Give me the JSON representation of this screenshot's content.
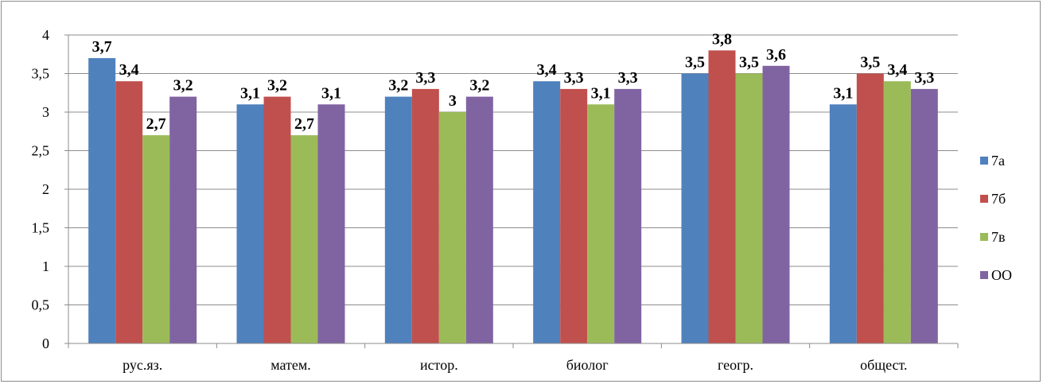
{
  "chart_data": {
    "type": "bar",
    "categories": [
      "рус.яз.",
      "матем.",
      "истор.",
      "биолог",
      "геогр.",
      "общест."
    ],
    "series": [
      {
        "name": "7а",
        "values": [
          3.7,
          3.1,
          3.2,
          3.4,
          3.5,
          3.1
        ],
        "labels": [
          "3,7",
          "3,1",
          "3,2",
          "3,4",
          "3,5",
          "3,1"
        ],
        "color": "#4f81bd"
      },
      {
        "name": "7б",
        "values": [
          3.4,
          3.2,
          3.3,
          3.3,
          3.8,
          3.5
        ],
        "labels": [
          "3,4",
          "3,2",
          "3,3",
          "3,3",
          "3,8",
          "3,5"
        ],
        "color": "#c0504d"
      },
      {
        "name": "7в",
        "values": [
          2.7,
          2.7,
          3.0,
          3.1,
          3.5,
          3.4
        ],
        "labels": [
          "2,7",
          "2,7",
          "3",
          "3,1",
          "3,5",
          "3,4"
        ],
        "color": "#9bbb59"
      },
      {
        "name": "ОО",
        "values": [
          3.2,
          3.1,
          3.2,
          3.3,
          3.6,
          3.3
        ],
        "labels": [
          "3,2",
          "3,1",
          "3,2",
          "3,3",
          "3,6",
          "3,3"
        ],
        "color": "#8064a2"
      }
    ],
    "ylim": [
      0,
      4
    ],
    "yticks": [
      0,
      0.5,
      1,
      1.5,
      2,
      2.5,
      3,
      3.5,
      4
    ],
    "ytick_labels": [
      "0",
      "0,5",
      "1",
      "1,5",
      "2",
      "2,5",
      "3",
      "3,5",
      "4"
    ],
    "grid": true,
    "legend_position": "right",
    "title": "",
    "xlabel": "",
    "ylabel": ""
  }
}
